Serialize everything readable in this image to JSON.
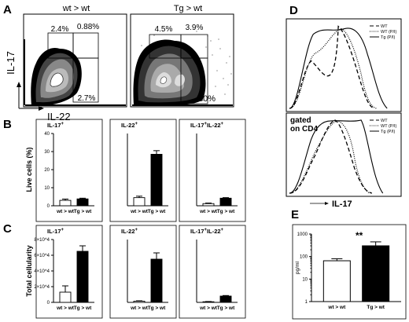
{
  "panels": {
    "A": {
      "letter": "A",
      "plots": [
        {
          "title": "wt > wt",
          "q_il17": "2.4%",
          "q_dp": "0.88%",
          "q_il22": "2.7%"
        },
        {
          "title": "Tg > wt",
          "q_il17": "4.5%",
          "q_dp": "3.9%",
          "q_il22": "30%"
        }
      ],
      "ylabel": "IL-17",
      "xlabel": "IL-22"
    },
    "B": {
      "letter": "B"
    },
    "C": {
      "letter": "C"
    },
    "D": {
      "letter": "D"
    },
    "E": {
      "letter": "E"
    }
  },
  "chart_data": [
    {
      "id": "B1",
      "type": "bar",
      "title": "IL-17+",
      "ylabel": "Live cells (%)",
      "ylim": [
        0,
        40
      ],
      "yticks": [
        0,
        10,
        20,
        30,
        40
      ],
      "categories": [
        "wt > wt",
        "Tg > wt"
      ],
      "values": [
        3.0,
        3.8
      ],
      "errors": [
        0.7,
        0.4
      ],
      "fills": [
        "#ffffff",
        "#000000"
      ]
    },
    {
      "id": "B2",
      "type": "bar",
      "title": "IL-22+",
      "ylim": [
        0,
        40
      ],
      "categories": [
        "wt > wt",
        "Tg > wt"
      ],
      "values": [
        4.5,
        28.5
      ],
      "errors": [
        0.8,
        2.0
      ],
      "fills": [
        "#ffffff",
        "#000000"
      ]
    },
    {
      "id": "B3",
      "type": "bar",
      "title": "IL-17+IL-22+",
      "ylim": [
        0,
        40
      ],
      "categories": [
        "wt > wt",
        "Tg > wt"
      ],
      "values": [
        1.2,
        4.2
      ],
      "errors": [
        0.3,
        0.3
      ],
      "fills": [
        "#ffffff",
        "#000000"
      ]
    },
    {
      "id": "C1",
      "type": "bar",
      "title": "IL-17+",
      "ylabel": "Total cellularity",
      "ylim": [
        0,
        80000
      ],
      "yticks": [
        0,
        20000,
        40000,
        60000,
        80000
      ],
      "ytick_labels": [
        "0",
        "2×10^4",
        "4×10^4",
        "6×10^4",
        "8×10^4"
      ],
      "categories": [
        "wt > wt",
        "Tg > wt"
      ],
      "values": [
        13000,
        65000
      ],
      "errors": [
        8000,
        7000
      ],
      "fills": [
        "#ffffff",
        "#000000"
      ]
    },
    {
      "id": "C2",
      "type": "bar",
      "title": "IL-22+",
      "ylim": [
        0,
        80000
      ],
      "categories": [
        "wt > wt",
        "Tg > wt"
      ],
      "values": [
        1500,
        55000
      ],
      "errors": [
        500,
        8000
      ],
      "fills": [
        "#ffffff",
        "#000000"
      ]
    },
    {
      "id": "C3",
      "type": "bar",
      "title": "IL-17+IL-22+",
      "ylim": [
        0,
        80000
      ],
      "categories": [
        "wt > wt",
        "Tg > wt"
      ],
      "values": [
        800,
        8000
      ],
      "errors": [
        300,
        700
      ],
      "fills": [
        "#ffffff",
        "#000000"
      ]
    },
    {
      "id": "D1",
      "type": "line",
      "title": "",
      "legend": [
        "WT",
        "WT (P/I)",
        "Tg (P/I)"
      ],
      "legend_placement": "top-right",
      "line_styles": [
        "dashed",
        "dotted",
        "solid"
      ],
      "xlabel": ""
    },
    {
      "id": "D2",
      "type": "line",
      "title": "",
      "annotation": "gated on CD4",
      "legend": [
        "WT",
        "WT (P/I)",
        "Tg (P/I)"
      ],
      "legend_placement": "top-right",
      "line_styles": [
        "dashed",
        "dotted",
        "solid"
      ],
      "xlabel": "IL-17"
    },
    {
      "id": "E1",
      "type": "bar",
      "title": "",
      "ylabel": "pg/ml",
      "yscale": "log",
      "ylim": [
        1,
        1000
      ],
      "yticks": [
        1,
        10,
        100,
        1000
      ],
      "categories": [
        "wt > wt",
        "Tg > wt"
      ],
      "values": [
        65,
        300
      ],
      "errors": [
        15,
        150
      ],
      "fills": [
        "#ffffff",
        "#000000"
      ],
      "annotation": "**"
    }
  ]
}
